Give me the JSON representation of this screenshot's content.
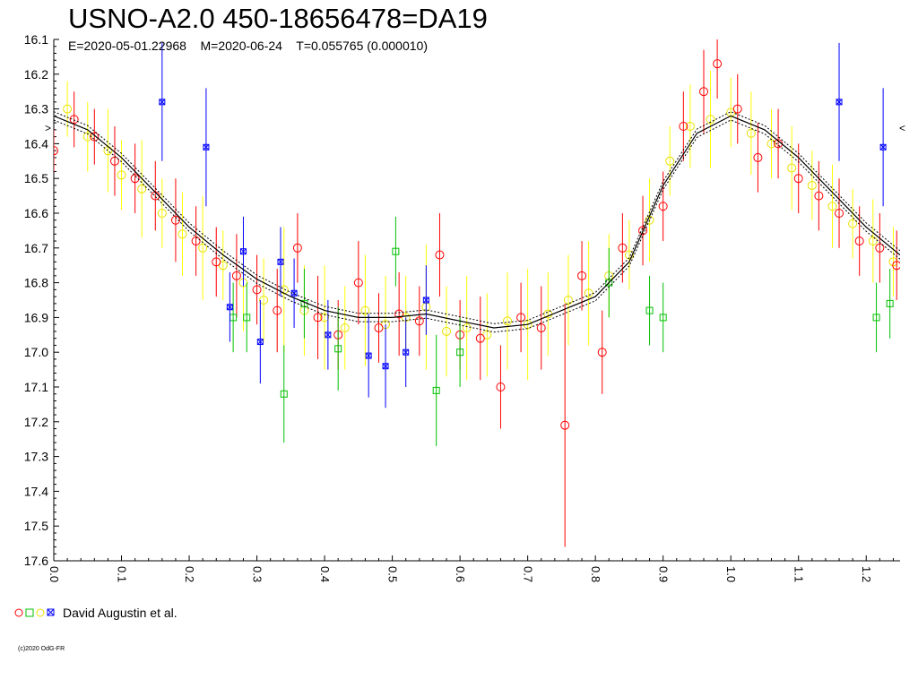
{
  "title": "USNO-A2.0 450-18656478=DA19",
  "subtitle": "E=2020-05-01.22968    M=2020-06-24    T=0.055765 (0.000010)",
  "legend": {
    "label": "David Augustin et al.",
    "marker_colors": [
      "#ff0000",
      "#00c000",
      "#ffff00",
      "#0000ff"
    ]
  },
  "copyright": "(c)2020 OdG-FR",
  "edge_markers": {
    "left": ">",
    "right": "<"
  },
  "chart_data": {
    "type": "scatter",
    "title": "USNO-A2.0 450-18656478=DA19",
    "xlabel": "",
    "ylabel": "",
    "xlim": [
      0.0,
      1.25
    ],
    "ylim": [
      17.6,
      16.1
    ],
    "y_inverted": true,
    "grid": false,
    "x_tick_labels": [
      "0.0",
      "0.1",
      "0.2",
      "0.3",
      "0.4",
      "0.5",
      "0.6",
      "0.7",
      "0.8",
      "0.9",
      "1.0",
      "1.1",
      "1.2"
    ],
    "y_tick_labels": [
      "16.1",
      "16.2",
      "16.3",
      "16.4",
      "16.5",
      "16.6",
      "16.7",
      "16.8",
      "16.9",
      "17.0",
      "17.1",
      "17.2",
      "17.3",
      "17.4",
      "17.5",
      "17.6"
    ],
    "fit_curve": {
      "x": [
        0.0,
        0.05,
        0.1,
        0.15,
        0.2,
        0.25,
        0.3,
        0.35,
        0.4,
        0.45,
        0.5,
        0.55,
        0.6,
        0.65,
        0.7,
        0.75,
        0.8,
        0.85,
        0.9,
        0.95,
        1.0,
        1.05,
        1.1,
        1.15,
        1.2,
        1.25
      ],
      "y": [
        16.32,
        16.36,
        16.44,
        16.54,
        16.64,
        16.72,
        16.79,
        16.84,
        16.88,
        16.9,
        16.9,
        16.89,
        16.91,
        16.93,
        16.92,
        16.88,
        16.84,
        16.74,
        16.52,
        16.37,
        16.32,
        16.36,
        16.44,
        16.54,
        16.64,
        16.72
      ],
      "band": 0.012,
      "color": "#000000"
    },
    "series": [
      {
        "color": "#ffff00",
        "marker": "circle",
        "x": [
          0.02,
          0.05,
          0.08,
          0.1,
          0.13,
          0.16,
          0.19,
          0.22,
          0.25,
          0.28,
          0.31,
          0.34,
          0.37,
          0.4,
          0.43,
          0.46,
          0.49,
          0.52,
          0.55,
          0.58,
          0.61,
          0.64,
          0.67,
          0.7,
          0.73,
          0.76,
          0.79,
          0.82,
          0.85,
          0.88,
          0.91,
          0.94,
          0.97,
          1.0,
          1.03,
          1.06,
          1.09,
          1.12,
          1.15,
          1.18,
          1.21,
          1.24
        ],
        "y": [
          16.3,
          16.38,
          16.42,
          16.49,
          16.53,
          16.6,
          16.66,
          16.7,
          16.75,
          16.8,
          16.85,
          16.82,
          16.88,
          16.9,
          16.93,
          16.88,
          16.92,
          16.9,
          16.87,
          16.94,
          16.93,
          16.95,
          16.91,
          16.92,
          16.89,
          16.85,
          16.83,
          16.78,
          16.72,
          16.62,
          16.45,
          16.35,
          16.33,
          16.31,
          16.37,
          16.4,
          16.47,
          16.52,
          16.58,
          16.63,
          16.68,
          16.74
        ],
        "err": [
          0.08,
          0.1,
          0.12,
          0.1,
          0.14,
          0.1,
          0.12,
          0.15,
          0.1,
          0.14,
          0.12,
          0.18,
          0.13,
          0.15,
          0.12,
          0.16,
          0.14,
          0.12,
          0.18,
          0.13,
          0.15,
          0.12,
          0.14,
          0.16,
          0.12,
          0.13,
          0.15,
          0.12,
          0.1,
          0.12,
          0.1,
          0.12,
          0.14,
          0.1,
          0.12,
          0.1,
          0.12,
          0.1,
          0.12,
          0.1,
          0.12,
          0.1
        ]
      },
      {
        "color": "#ff0000",
        "marker": "circle",
        "x": [
          0.0,
          0.03,
          0.06,
          0.09,
          0.12,
          0.15,
          0.18,
          0.21,
          0.24,
          0.27,
          0.3,
          0.33,
          0.36,
          0.39,
          0.42,
          0.45,
          0.48,
          0.51,
          0.54,
          0.57,
          0.6,
          0.63,
          0.66,
          0.69,
          0.72,
          0.755,
          0.78,
          0.81,
          0.84,
          0.87,
          0.9,
          0.93,
          0.96,
          0.98,
          1.01,
          1.04,
          1.07,
          1.1,
          1.13,
          1.16,
          1.19,
          1.22,
          1.245
        ],
        "y": [
          16.42,
          16.33,
          16.38,
          16.45,
          16.5,
          16.55,
          16.62,
          16.68,
          16.74,
          16.78,
          16.82,
          16.88,
          16.7,
          16.9,
          16.95,
          16.8,
          16.93,
          16.89,
          16.91,
          16.72,
          16.95,
          16.96,
          17.1,
          16.9,
          16.93,
          17.21,
          16.78,
          17.0,
          16.7,
          16.65,
          16.58,
          16.35,
          16.25,
          16.17,
          16.3,
          16.44,
          16.4,
          16.5,
          16.55,
          16.6,
          16.68,
          16.7,
          16.75
        ],
        "err": [
          0.06,
          0.08,
          0.08,
          0.1,
          0.1,
          0.1,
          0.12,
          0.1,
          0.1,
          0.12,
          0.1,
          0.12,
          0.1,
          0.12,
          0.1,
          0.12,
          0.1,
          0.12,
          0.1,
          0.12,
          0.1,
          0.12,
          0.12,
          0.1,
          0.12,
          0.35,
          0.1,
          0.12,
          0.1,
          0.1,
          0.1,
          0.1,
          0.12,
          0.1,
          0.1,
          0.1,
          0.1,
          0.1,
          0.1,
          0.1,
          0.1,
          0.1,
          0.1
        ]
      },
      {
        "color": "#00c000",
        "marker": "square",
        "x": [
          0.265,
          0.285,
          0.34,
          0.37,
          0.42,
          0.505,
          0.565,
          0.6,
          0.82,
          0.88,
          0.9,
          1.215,
          1.235
        ],
        "y": [
          16.9,
          16.9,
          17.12,
          16.86,
          16.99,
          16.71,
          17.11,
          17.0,
          16.8,
          16.88,
          16.9,
          16.9,
          16.86
        ],
        "err": [
          0.1,
          0.1,
          0.14,
          0.1,
          0.12,
          0.1,
          0.16,
          0.1,
          0.1,
          0.1,
          0.1,
          0.1,
          0.1
        ]
      },
      {
        "color": "#0000ff",
        "marker": "star",
        "x": [
          0.16,
          0.225,
          0.26,
          0.28,
          0.305,
          0.335,
          0.355,
          0.405,
          0.465,
          0.49,
          0.52,
          0.55,
          1.16,
          1.225
        ],
        "y": [
          16.28,
          16.41,
          16.87,
          16.71,
          16.97,
          16.74,
          16.83,
          16.95,
          17.01,
          17.04,
          17.0,
          16.85,
          16.28,
          16.41
        ],
        "err": [
          0.17,
          0.17,
          0.1,
          0.1,
          0.12,
          0.1,
          0.1,
          0.1,
          0.12,
          0.12,
          0.1,
          0.1,
          0.17,
          0.17
        ]
      }
    ]
  }
}
